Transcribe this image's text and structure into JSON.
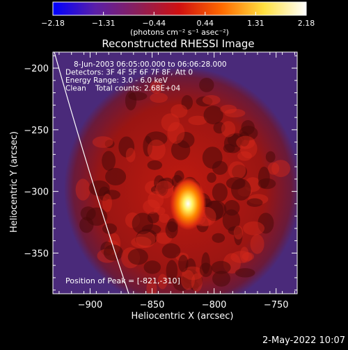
{
  "chart_data": {
    "type": "heatmap",
    "title": "Reconstructed RHESSI Image",
    "xlabel": "Heliocentric X (arcsec)",
    "ylabel": "Heliocentric Y (arcsec)",
    "xlim": [
      -930,
      -733
    ],
    "ylim": [
      -383,
      -187
    ],
    "x_ticks": [
      -900,
      -850,
      -800,
      -750
    ],
    "y_ticks": [
      -200,
      -250,
      -300,
      -350
    ],
    "x_tick_labels": [
      "−900",
      "−850",
      "−800",
      "−750"
    ],
    "y_tick_labels": [
      "−200",
      "−250",
      "−300",
      "−350"
    ],
    "colorbar": {
      "min": -2.18,
      "max": 2.18,
      "ticks": [
        -2.18,
        -1.31,
        -0.44,
        0.44,
        1.31,
        2.18
      ],
      "tick_labels": [
        "−2.18",
        "−1.31",
        "−0.44",
        "0.44",
        "1.31",
        "2.18"
      ],
      "unit_label": "(photons cm⁻² s⁻¹ asec⁻²)",
      "colors": [
        "#0000ff",
        "#5a1fa8",
        "#8a1f5a",
        "#d01010",
        "#ff6a00",
        "#ffe040",
        "#ffffff"
      ]
    },
    "annotations": [
      "8-Jun-2003 06:05:00.000 to 06:06:28.000",
      "Detectors: 3F 4F 5F 6F 7F 8F, Att 0",
      "Energy Range: 3.0 - 6.0 keV",
      "Clean    Total counts: 2.68E+04"
    ],
    "peak_label": "Position of Peak = [-821,-310]",
    "peak": [
      -821,
      -310
    ],
    "timestamp": "2-May-2022 10:07"
  }
}
